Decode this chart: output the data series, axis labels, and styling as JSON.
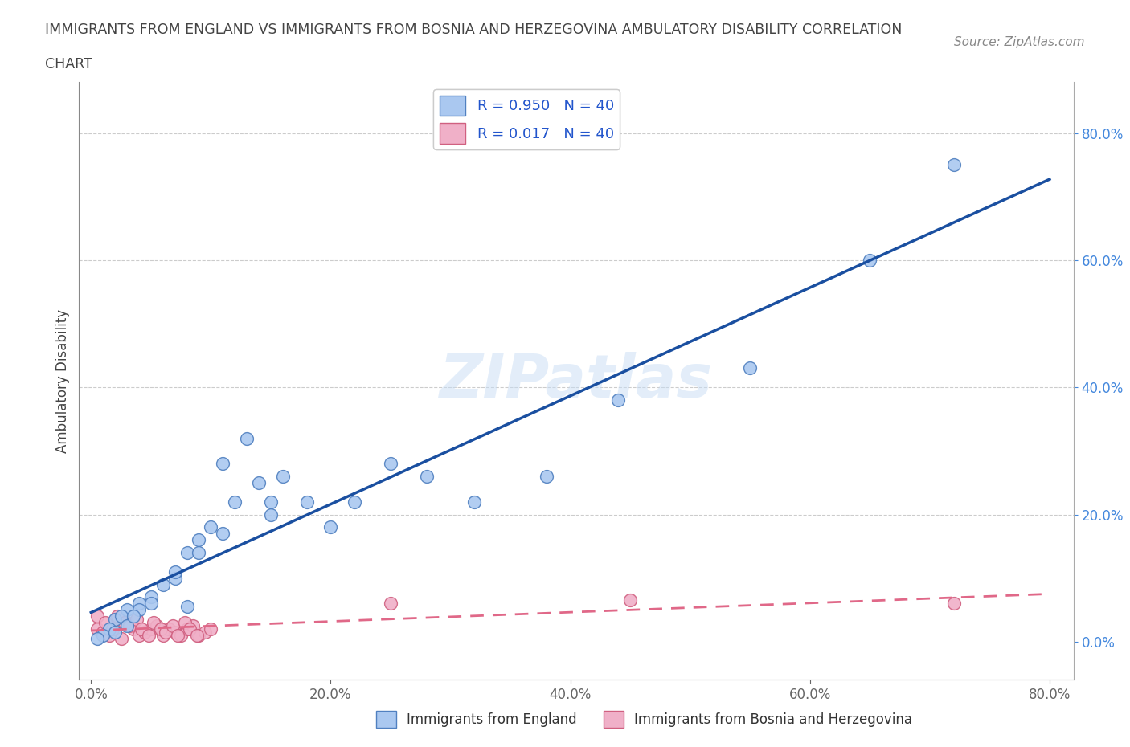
{
  "title_line1": "IMMIGRANTS FROM ENGLAND VS IMMIGRANTS FROM BOSNIA AND HERZEGOVINA AMBULATORY DISABILITY CORRELATION",
  "title_line2": "CHART",
  "source": "Source: ZipAtlas.com",
  "ylabel": "Ambulatory Disability",
  "xlim": [
    -0.01,
    0.82
  ],
  "ylim": [
    -0.06,
    0.88
  ],
  "x_ticks": [
    0.0,
    0.2,
    0.4,
    0.6,
    0.8
  ],
  "y_ticks": [
    0.0,
    0.2,
    0.4,
    0.6,
    0.8
  ],
  "r_england": 0.95,
  "n_england": 40,
  "r_bosnia": 0.017,
  "n_bosnia": 40,
  "blue_color": "#aac8f0",
  "pink_color": "#f0b0c8",
  "blue_edge_color": "#5080c0",
  "pink_edge_color": "#d06080",
  "blue_line_color": "#1a4fa0",
  "pink_line_color": "#e06888",
  "legend_label_1": "Immigrants from England",
  "legend_label_2": "Immigrants from Bosnia and Herzegovina",
  "watermark": "ZIPatlas",
  "blue_x": [
    0.02,
    0.03,
    0.025,
    0.015,
    0.04,
    0.05,
    0.06,
    0.07,
    0.08,
    0.09,
    0.1,
    0.12,
    0.11,
    0.13,
    0.14,
    0.15,
    0.16,
    0.18,
    0.2,
    0.22,
    0.01,
    0.02,
    0.03,
    0.04,
    0.05,
    0.07,
    0.09,
    0.11,
    0.25,
    0.28,
    0.32,
    0.38,
    0.44,
    0.55,
    0.65,
    0.72,
    0.005,
    0.035,
    0.15,
    0.08
  ],
  "blue_y": [
    0.035,
    0.05,
    0.04,
    0.02,
    0.06,
    0.07,
    0.09,
    0.1,
    0.14,
    0.16,
    0.18,
    0.22,
    0.28,
    0.32,
    0.25,
    0.2,
    0.26,
    0.22,
    0.18,
    0.22,
    0.01,
    0.015,
    0.025,
    0.05,
    0.06,
    0.11,
    0.14,
    0.17,
    0.28,
    0.26,
    0.22,
    0.26,
    0.38,
    0.43,
    0.6,
    0.75,
    0.005,
    0.04,
    0.22,
    0.055
  ],
  "pink_x": [
    0.005,
    0.01,
    0.015,
    0.02,
    0.025,
    0.03,
    0.035,
    0.04,
    0.045,
    0.05,
    0.055,
    0.06,
    0.065,
    0.07,
    0.075,
    0.08,
    0.085,
    0.09,
    0.095,
    0.1,
    0.005,
    0.012,
    0.018,
    0.022,
    0.028,
    0.032,
    0.038,
    0.042,
    0.048,
    0.052,
    0.058,
    0.062,
    0.068,
    0.072,
    0.078,
    0.082,
    0.088,
    0.25,
    0.45,
    0.72
  ],
  "pink_y": [
    0.02,
    0.015,
    0.01,
    0.025,
    0.005,
    0.03,
    0.02,
    0.01,
    0.015,
    0.02,
    0.025,
    0.01,
    0.02,
    0.015,
    0.01,
    0.02,
    0.025,
    0.01,
    0.015,
    0.02,
    0.04,
    0.03,
    0.02,
    0.04,
    0.03,
    0.025,
    0.035,
    0.02,
    0.01,
    0.03,
    0.02,
    0.015,
    0.025,
    0.01,
    0.03,
    0.02,
    0.01,
    0.06,
    0.065,
    0.06
  ]
}
